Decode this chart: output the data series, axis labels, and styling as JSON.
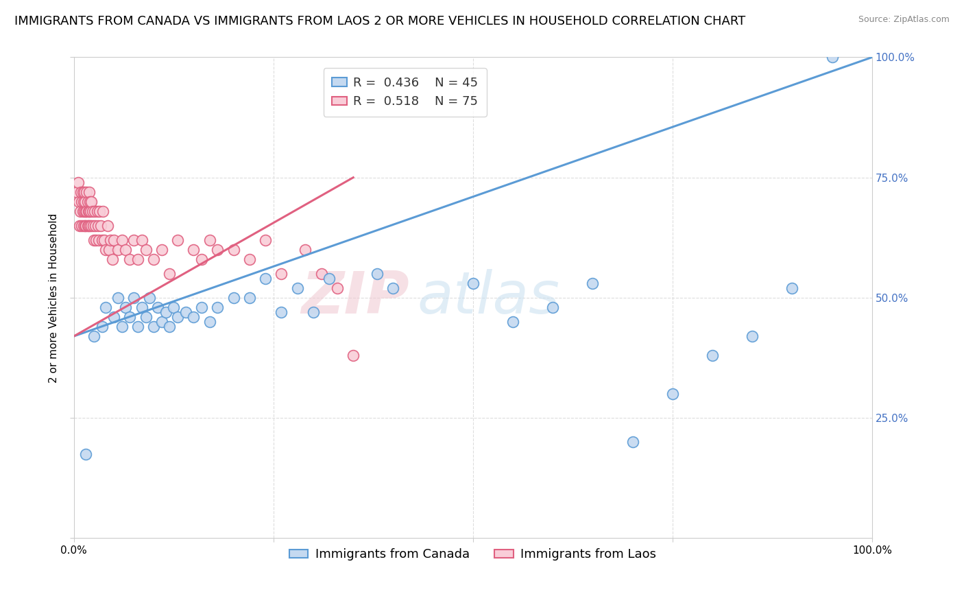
{
  "title": "IMMIGRANTS FROM CANADA VS IMMIGRANTS FROM LAOS 2 OR MORE VEHICLES IN HOUSEHOLD CORRELATION CHART",
  "source": "Source: ZipAtlas.com",
  "ylabel": "2 or more Vehicles in Household",
  "legend_canada": "Immigrants from Canada",
  "legend_laos": "Immigrants from Laos",
  "R_canada": 0.436,
  "N_canada": 45,
  "R_laos": 0.518,
  "N_laos": 75,
  "color_canada_face": "#c5d9f0",
  "color_canada_edge": "#5b9bd5",
  "color_laos_face": "#f9cdd8",
  "color_laos_edge": "#e06080",
  "xlim": [
    0,
    1
  ],
  "ylim": [
    0,
    1
  ],
  "canada_line_x0": 0.0,
  "canada_line_y0": 0.42,
  "canada_line_x1": 1.0,
  "canada_line_y1": 1.0,
  "laos_line_x0": 0.0,
  "laos_line_y0": 0.42,
  "laos_line_x1": 0.35,
  "laos_line_y1": 0.75,
  "watermark_zip": "ZIP",
  "watermark_atlas": "atlas",
  "background_color": "#ffffff",
  "grid_color": "#dddddd",
  "title_fontsize": 13,
  "axis_fontsize": 11,
  "tick_fontsize": 11,
  "legend_fontsize": 13,
  "canada_x": [
    0.015,
    0.025,
    0.035,
    0.04,
    0.05,
    0.055,
    0.06,
    0.065,
    0.07,
    0.075,
    0.08,
    0.085,
    0.09,
    0.095,
    0.1,
    0.105,
    0.11,
    0.115,
    0.12,
    0.125,
    0.13,
    0.14,
    0.15,
    0.16,
    0.17,
    0.18,
    0.2,
    0.22,
    0.24,
    0.26,
    0.28,
    0.3,
    0.32,
    0.38,
    0.4,
    0.5,
    0.55,
    0.6,
    0.65,
    0.7,
    0.75,
    0.8,
    0.85,
    0.9,
    0.95
  ],
  "canada_y": [
    0.175,
    0.42,
    0.44,
    0.48,
    0.46,
    0.5,
    0.44,
    0.48,
    0.46,
    0.5,
    0.44,
    0.48,
    0.46,
    0.5,
    0.44,
    0.48,
    0.45,
    0.47,
    0.44,
    0.48,
    0.46,
    0.47,
    0.46,
    0.48,
    0.45,
    0.48,
    0.5,
    0.5,
    0.54,
    0.47,
    0.52,
    0.47,
    0.54,
    0.55,
    0.52,
    0.53,
    0.45,
    0.48,
    0.53,
    0.2,
    0.3,
    0.38,
    0.42,
    0.52,
    1.0
  ],
  "laos_x": [
    0.004,
    0.005,
    0.006,
    0.007,
    0.008,
    0.009,
    0.01,
    0.01,
    0.011,
    0.011,
    0.012,
    0.012,
    0.013,
    0.013,
    0.014,
    0.014,
    0.015,
    0.015,
    0.016,
    0.016,
    0.017,
    0.017,
    0.018,
    0.018,
    0.019,
    0.019,
    0.02,
    0.02,
    0.021,
    0.022,
    0.022,
    0.023,
    0.024,
    0.025,
    0.026,
    0.027,
    0.028,
    0.029,
    0.03,
    0.031,
    0.032,
    0.034,
    0.035,
    0.036,
    0.038,
    0.04,
    0.042,
    0.044,
    0.046,
    0.048,
    0.05,
    0.055,
    0.06,
    0.065,
    0.07,
    0.075,
    0.08,
    0.085,
    0.09,
    0.1,
    0.11,
    0.12,
    0.13,
    0.15,
    0.16,
    0.17,
    0.18,
    0.2,
    0.22,
    0.24,
    0.26,
    0.29,
    0.31,
    0.33,
    0.35
  ],
  "laos_y": [
    0.72,
    0.74,
    0.7,
    0.65,
    0.68,
    0.72,
    0.7,
    0.65,
    0.68,
    0.72,
    0.7,
    0.65,
    0.68,
    0.72,
    0.65,
    0.7,
    0.68,
    0.65,
    0.72,
    0.68,
    0.65,
    0.7,
    0.68,
    0.65,
    0.72,
    0.68,
    0.65,
    0.7,
    0.68,
    0.65,
    0.7,
    0.68,
    0.65,
    0.62,
    0.68,
    0.65,
    0.62,
    0.68,
    0.65,
    0.62,
    0.68,
    0.65,
    0.62,
    0.68,
    0.62,
    0.6,
    0.65,
    0.6,
    0.62,
    0.58,
    0.62,
    0.6,
    0.62,
    0.6,
    0.58,
    0.62,
    0.58,
    0.62,
    0.6,
    0.58,
    0.6,
    0.55,
    0.62,
    0.6,
    0.58,
    0.62,
    0.6,
    0.6,
    0.58,
    0.62,
    0.55,
    0.6,
    0.55,
    0.52,
    0.38
  ]
}
